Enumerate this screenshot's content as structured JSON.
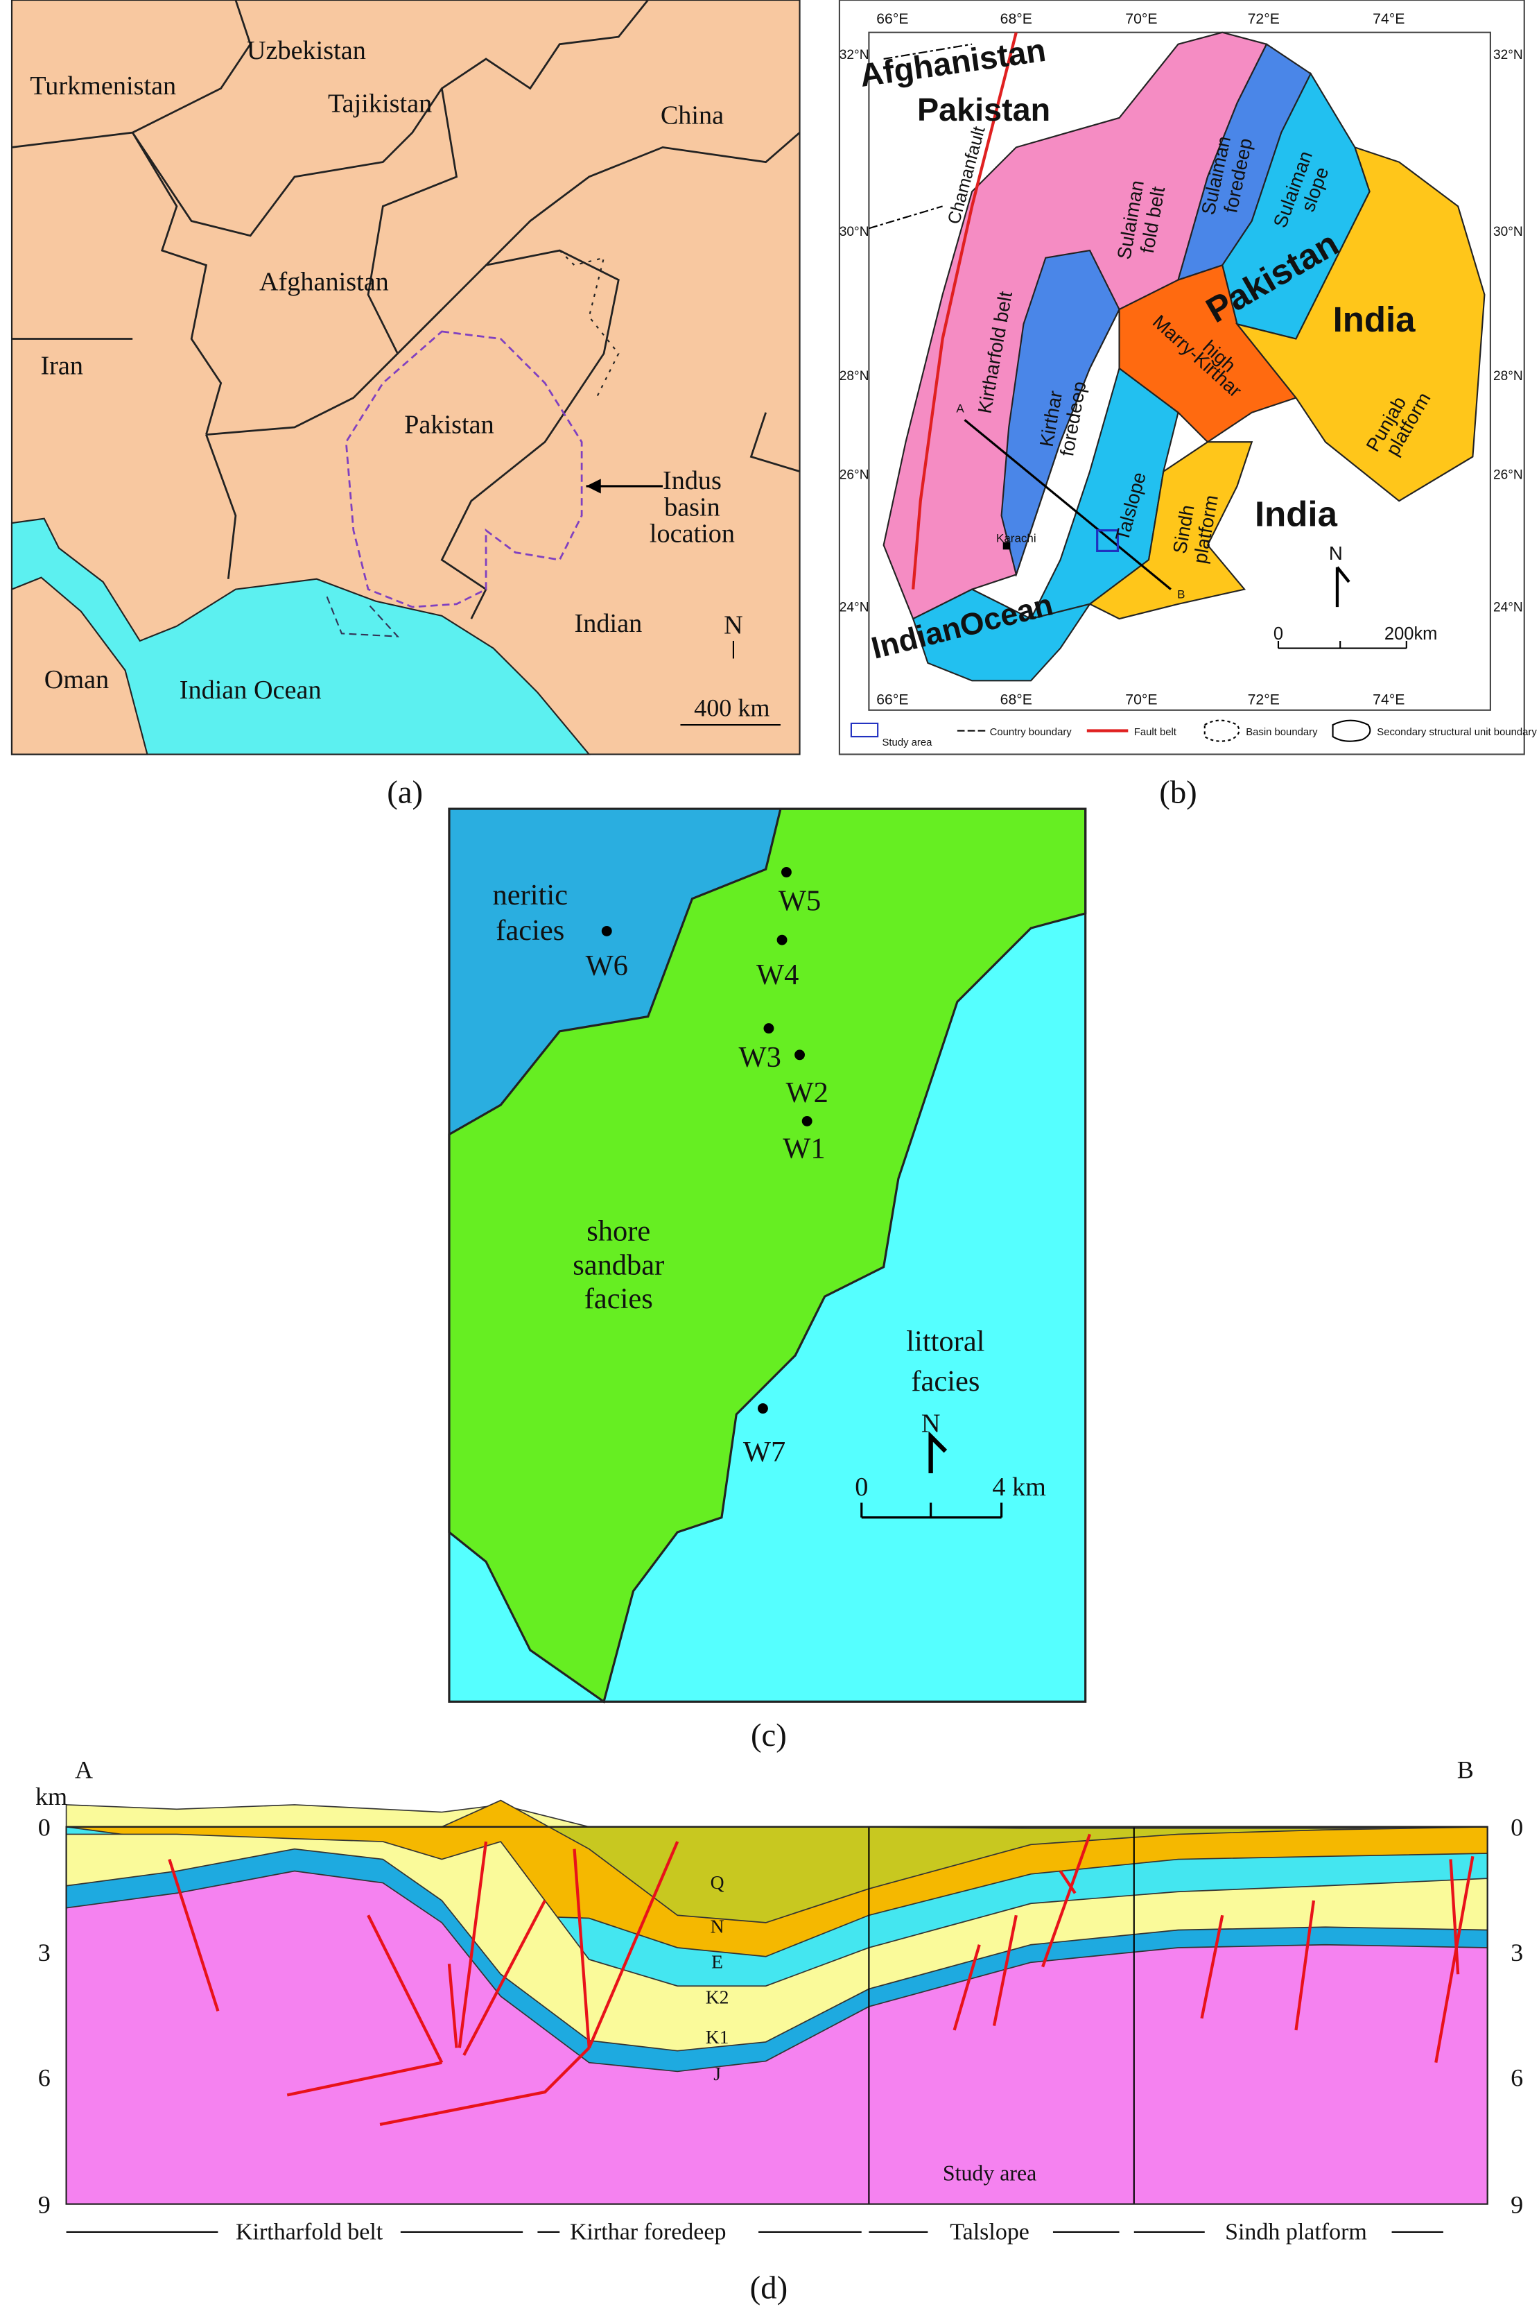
{
  "panel_a": {
    "label": "(a)",
    "countries": [
      "Uzbekistan",
      "Turkmenistan",
      "Tajikistan",
      "China",
      "Afghanistan",
      "Iran",
      "Pakistan",
      "Indian",
      "Oman"
    ],
    "ocean": "Indian Ocean",
    "annotation": [
      "Indus",
      "basin",
      "location"
    ],
    "north": "N",
    "scale": "400 km"
  },
  "panel_b": {
    "label": "(b)",
    "lon_ticks": [
      "66°E",
      "68°E",
      "70°E",
      "72°E",
      "74°E"
    ],
    "lat_ticks": [
      "32°N",
      "30°N",
      "28°N",
      "26°N",
      "24°N"
    ],
    "labels": {
      "afghanistan": "Afghanistan",
      "pakistan_top": "Pakistan",
      "chaman": "Chamanfault",
      "kirtharfold": "Kirtharfold belt",
      "sulaiman_fold": [
        "Sulaiman",
        "fold belt"
      ],
      "sulaiman_foredeep": [
        "Sulaiman",
        "foredeep"
      ],
      "sulaiman_slope": [
        "Sulaiman",
        "slope"
      ],
      "pakistan": "Pakistan",
      "india_top": "India",
      "marry": [
        "Marry-Kirthar",
        "high"
      ],
      "kirthar_foredeep": [
        "Kirthar",
        "foredeep"
      ],
      "talslope": "Talslope",
      "punjab": [
        "Punjab",
        "platform"
      ],
      "sindh": [
        "Sindh",
        "platform"
      ],
      "india": "India",
      "karachi": "Karachi",
      "ocean": "IndianOcean",
      "a": "A",
      "b": "B",
      "north": "N",
      "scale_zero": "0",
      "scale": "200km"
    },
    "legend": [
      "Study area",
      "Country boundary",
      "Fault belt",
      "Basin boundary",
      "Secondary structural unit boundary"
    ]
  },
  "panel_c": {
    "label": "(c)",
    "neritic": [
      "neritic",
      "facies"
    ],
    "shore": [
      "shore",
      "sandbar",
      "facies"
    ],
    "littoral": [
      "littoral",
      "facies"
    ],
    "wells": [
      "W1",
      "W2",
      "W3",
      "W4",
      "W5",
      "W6",
      "W7"
    ],
    "north": "N",
    "scale_zero": "0",
    "scale": "4 km"
  },
  "panel_d": {
    "label": "(d)",
    "start": "A",
    "end": "B",
    "unit": "km",
    "depth_ticks": [
      0,
      3,
      6,
      9
    ],
    "strata": [
      "Q",
      "N",
      "E",
      "K2",
      "K1",
      "J"
    ],
    "study_area": "Study area",
    "units": [
      "Kirtharfold belt",
      "Kirthar foredeep",
      "Talslope",
      "Sindh platform"
    ]
  }
}
